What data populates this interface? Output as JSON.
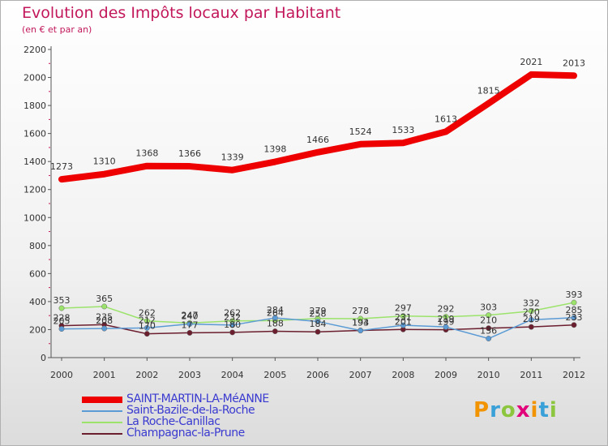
{
  "chart_data": {
    "type": "line",
    "title": "Evolution des Impôts locaux par Habitant",
    "subtitle": "(en € et par an)",
    "x": [
      "2000",
      "2001",
      "2002",
      "2003",
      "2004",
      "2005",
      "2006",
      "2007",
      "2008",
      "2009",
      "2010",
      "2011",
      "2012"
    ],
    "yticks": [
      0,
      200,
      400,
      600,
      800,
      1000,
      1200,
      1400,
      1600,
      1800,
      2000,
      2200
    ],
    "ylim": [
      0,
      2200
    ],
    "grid": false,
    "legend_position": "bottom-left",
    "series": [
      {
        "name": "SAINT-MARTIN-LA-MéANNE",
        "color": "#ee0000",
        "width": 8,
        "labels": true,
        "values": [
          1273,
          1310,
          1368,
          1366,
          1339,
          1398,
          1466,
          1524,
          1533,
          1613,
          1815,
          2021,
          2013
        ]
      },
      {
        "name": "Saint-Bazile-de-la-Roche",
        "color": "#5b9bd5",
        "width": 1.5,
        "labels": true,
        "values": [
          205,
          208,
          212,
          240,
          232,
          284,
          258,
          193,
          231,
          219,
          136,
          270,
          285
        ]
      },
      {
        "name": "La Roche-Canillac",
        "color": "#9be36b",
        "width": 1.5,
        "labels": true,
        "values": [
          353,
          365,
          262,
          247,
          262,
          264,
          279,
          278,
          297,
          292,
          303,
          332,
          393
        ]
      },
      {
        "name": "Champagnac-la-Prune",
        "color": "#6b1e2e",
        "width": 1.5,
        "labels": true,
        "values": [
          228,
          235,
          170,
          177,
          180,
          188,
          184,
          194,
          201,
          199,
          210,
          219,
          233
        ]
      }
    ]
  },
  "logo": {
    "p": "P",
    "r": "r",
    "o": "o",
    "x": "x",
    "i": "i",
    "t": "t",
    "i2": "i"
  }
}
